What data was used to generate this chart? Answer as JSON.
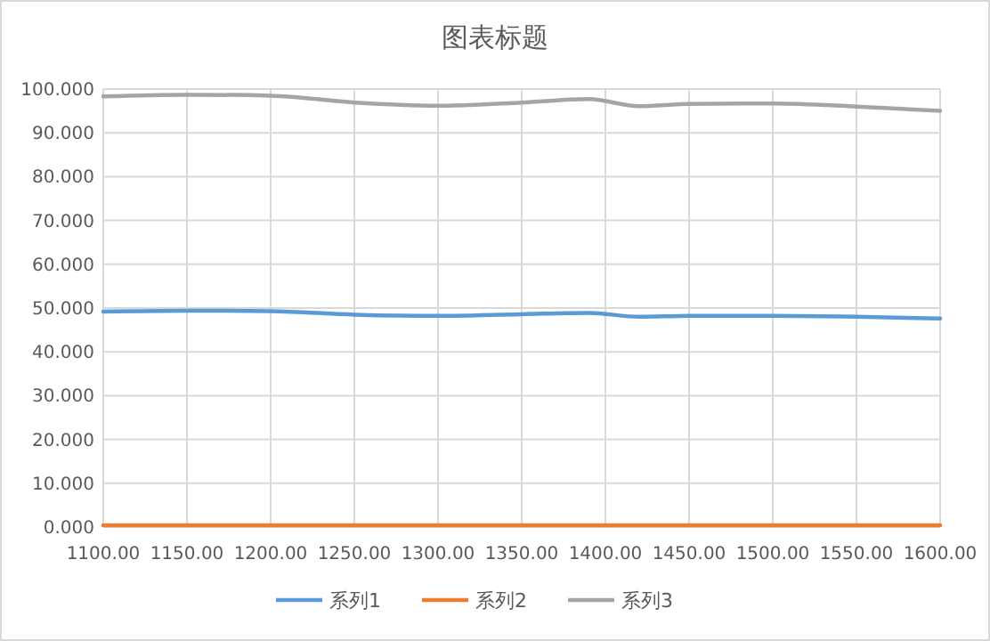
{
  "chart_data": {
    "type": "line",
    "title": "图表标题",
    "x": [
      1100,
      1150,
      1200,
      1250,
      1300,
      1350,
      1390,
      1420,
      1450,
      1500,
      1550,
      1600
    ],
    "series": [
      {
        "name": "系列1",
        "color": "#5b9bd5",
        "values": [
          49.2,
          49.4,
          49.3,
          48.5,
          48.2,
          48.6,
          48.9,
          48.0,
          48.2,
          48.2,
          48.0,
          47.6
        ]
      },
      {
        "name": "系列2",
        "color": "#ed7d31",
        "values": [
          0.4,
          0.4,
          0.4,
          0.4,
          0.4,
          0.4,
          0.4,
          0.4,
          0.4,
          0.4,
          0.4,
          0.4
        ]
      },
      {
        "name": "系列3",
        "color": "#a5a5a5",
        "values": [
          98.3,
          98.7,
          98.5,
          96.9,
          96.2,
          96.9,
          97.7,
          96.1,
          96.6,
          96.7,
          96.0,
          95.0
        ]
      }
    ],
    "xlim": [
      1100,
      1600
    ],
    "xticks": [
      {
        "value": 1100,
        "label": "1100.00"
      },
      {
        "value": 1150,
        "label": "1150.00"
      },
      {
        "value": 1200,
        "label": "1200.00"
      },
      {
        "value": 1250,
        "label": "1250.00"
      },
      {
        "value": 1300,
        "label": "1300.00"
      },
      {
        "value": 1350,
        "label": "1350.00"
      },
      {
        "value": 1400,
        "label": "1400.00"
      },
      {
        "value": 1450,
        "label": "1450.00"
      },
      {
        "value": 1500,
        "label": "1500.00"
      },
      {
        "value": 1550,
        "label": "1550.00"
      },
      {
        "value": 1600,
        "label": "1600.00"
      }
    ],
    "ylim": [
      0,
      100
    ],
    "yticks": [
      {
        "value": 0,
        "label": "0.000"
      },
      {
        "value": 10,
        "label": "10.000"
      },
      {
        "value": 20,
        "label": "20.000"
      },
      {
        "value": 30,
        "label": "30.000"
      },
      {
        "value": 40,
        "label": "40.000"
      },
      {
        "value": 50,
        "label": "50.000"
      },
      {
        "value": 60,
        "label": "60.000"
      },
      {
        "value": 70,
        "label": "70.000"
      },
      {
        "value": 80,
        "label": "80.000"
      },
      {
        "value": 90,
        "label": "90.000"
      },
      {
        "value": 100,
        "label": "100.000"
      }
    ],
    "grid": true,
    "legend": "bottom",
    "marker": "none",
    "line_style": "solid"
  }
}
